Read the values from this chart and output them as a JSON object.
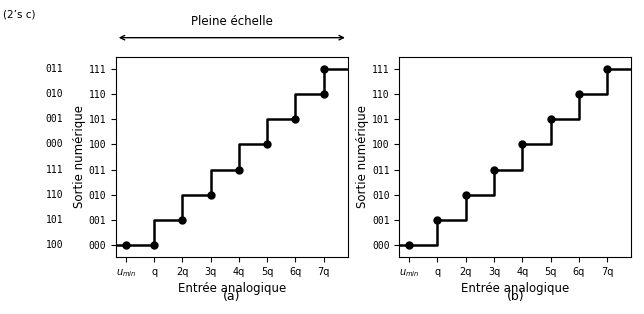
{
  "title_top": "Pleine échelle",
  "twos_complement_label": "(2’s c)",
  "xlabel": "Entrée analogique",
  "ylabel": "Sortie numérique",
  "label_a": "(a)",
  "label_b": "(b)",
  "ytick_labels_inner": [
    "000",
    "001",
    "010",
    "011",
    "100",
    "101",
    "110",
    "111"
  ],
  "ytick_labels_outer_a": [
    "100",
    "101",
    "110",
    "111",
    "000",
    "001",
    "010",
    "011"
  ],
  "xtick_labels": [
    "$u_{min}$",
    "q",
    "2q",
    "3q",
    "4q",
    "5q",
    "6q",
    "7q"
  ],
  "xtick_positions": [
    0,
    1,
    2,
    3,
    4,
    5,
    6,
    7
  ],
  "ytick_positions": [
    0,
    1,
    2,
    3,
    4,
    5,
    6,
    7
  ],
  "line_color": "black",
  "line_width": 1.8,
  "dot_size": 5,
  "background": "white",
  "figsize": [
    6.44,
    3.14
  ],
  "dpi": 100
}
